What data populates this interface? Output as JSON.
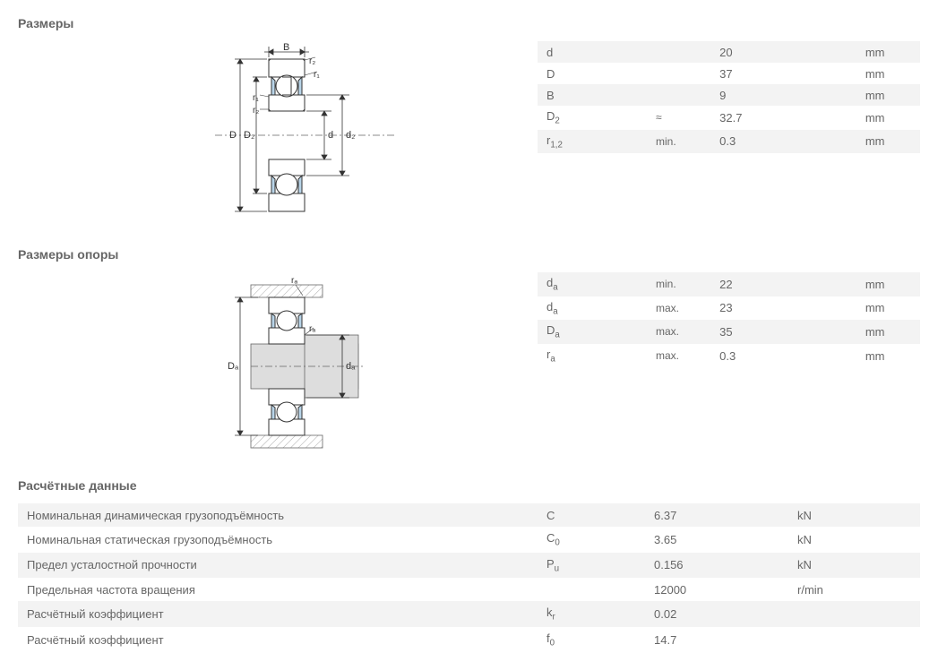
{
  "sections": {
    "dimensions": {
      "title": "Размеры",
      "diagram": {
        "labels": {
          "B": "B",
          "r2t": "r₂",
          "r1t": "r₁",
          "r1b": "r₁",
          "r2b": "r₂",
          "D": "D",
          "D2": "D₂",
          "d": "d",
          "d2": "d₂"
        },
        "colors": {
          "stroke": "#333333",
          "fill_steel": "#ffffff",
          "fill_shield": "#b8d4e8",
          "hatch": "#999999",
          "dim": "#333333",
          "text": "#333333"
        }
      },
      "rows": [
        {
          "sym": "d",
          "sub": "",
          "qual": "",
          "val": "20",
          "unit": "mm",
          "alt": true
        },
        {
          "sym": "D",
          "sub": "",
          "qual": "",
          "val": "37",
          "unit": "mm",
          "alt": false
        },
        {
          "sym": "B",
          "sub": "",
          "qual": "",
          "val": "9",
          "unit": "mm",
          "alt": true
        },
        {
          "sym": "D",
          "sub": "2",
          "qual": "≈",
          "val": "32.7",
          "unit": "mm",
          "alt": false
        },
        {
          "sym": "r",
          "sub": "1,2",
          "qual": "min.",
          "val": "0.3",
          "unit": "mm",
          "alt": true
        }
      ]
    },
    "abutment": {
      "title": "Размеры опоры",
      "diagram": {
        "labels": {
          "ra_t": "rₐ",
          "ra_i": "rₐ",
          "Da": "Dₐ",
          "da": "dₐ"
        },
        "colors": {
          "stroke": "#333333",
          "fill_steel": "#ffffff",
          "fill_shield": "#b8d4e8",
          "hatch": "#bbbbbb",
          "shaft": "#dddddd"
        }
      },
      "rows": [
        {
          "sym": "d",
          "sub": "a",
          "qual": "min.",
          "val": "22",
          "unit": "mm",
          "alt": true
        },
        {
          "sym": "d",
          "sub": "a",
          "qual": "max.",
          "val": "23",
          "unit": "mm",
          "alt": false
        },
        {
          "sym": "D",
          "sub": "a",
          "qual": "max.",
          "val": "35",
          "unit": "mm",
          "alt": true
        },
        {
          "sym": "r",
          "sub": "a",
          "qual": "max.",
          "val": "0.3",
          "unit": "mm",
          "alt": false
        }
      ]
    },
    "calc": {
      "title": "Расчётные данные",
      "rows": [
        {
          "label": "Номинальная динамическая грузоподъёмность",
          "sym": "C",
          "sub": "",
          "val": "6.37",
          "unit": "kN",
          "alt": true
        },
        {
          "label": "Номинальная статическая грузоподъёмность",
          "sym": "C",
          "sub": "0",
          "val": "3.65",
          "unit": "kN",
          "alt": false
        },
        {
          "label": "Предел усталостной прочности",
          "sym": "P",
          "sub": "u",
          "val": "0.156",
          "unit": "kN",
          "alt": true
        },
        {
          "label": "Предельная частота вращения",
          "sym": "",
          "sub": "",
          "val": "12000",
          "unit": "r/min",
          "alt": false
        },
        {
          "label": "Расчётный коэффициент",
          "sym": "k",
          "sub": "r",
          "val": "0.02",
          "unit": "",
          "alt": true
        },
        {
          "label": "Расчётный коэффициент",
          "sym": "f",
          "sub": "0",
          "val": "14.7",
          "unit": "",
          "alt": false
        }
      ]
    }
  }
}
